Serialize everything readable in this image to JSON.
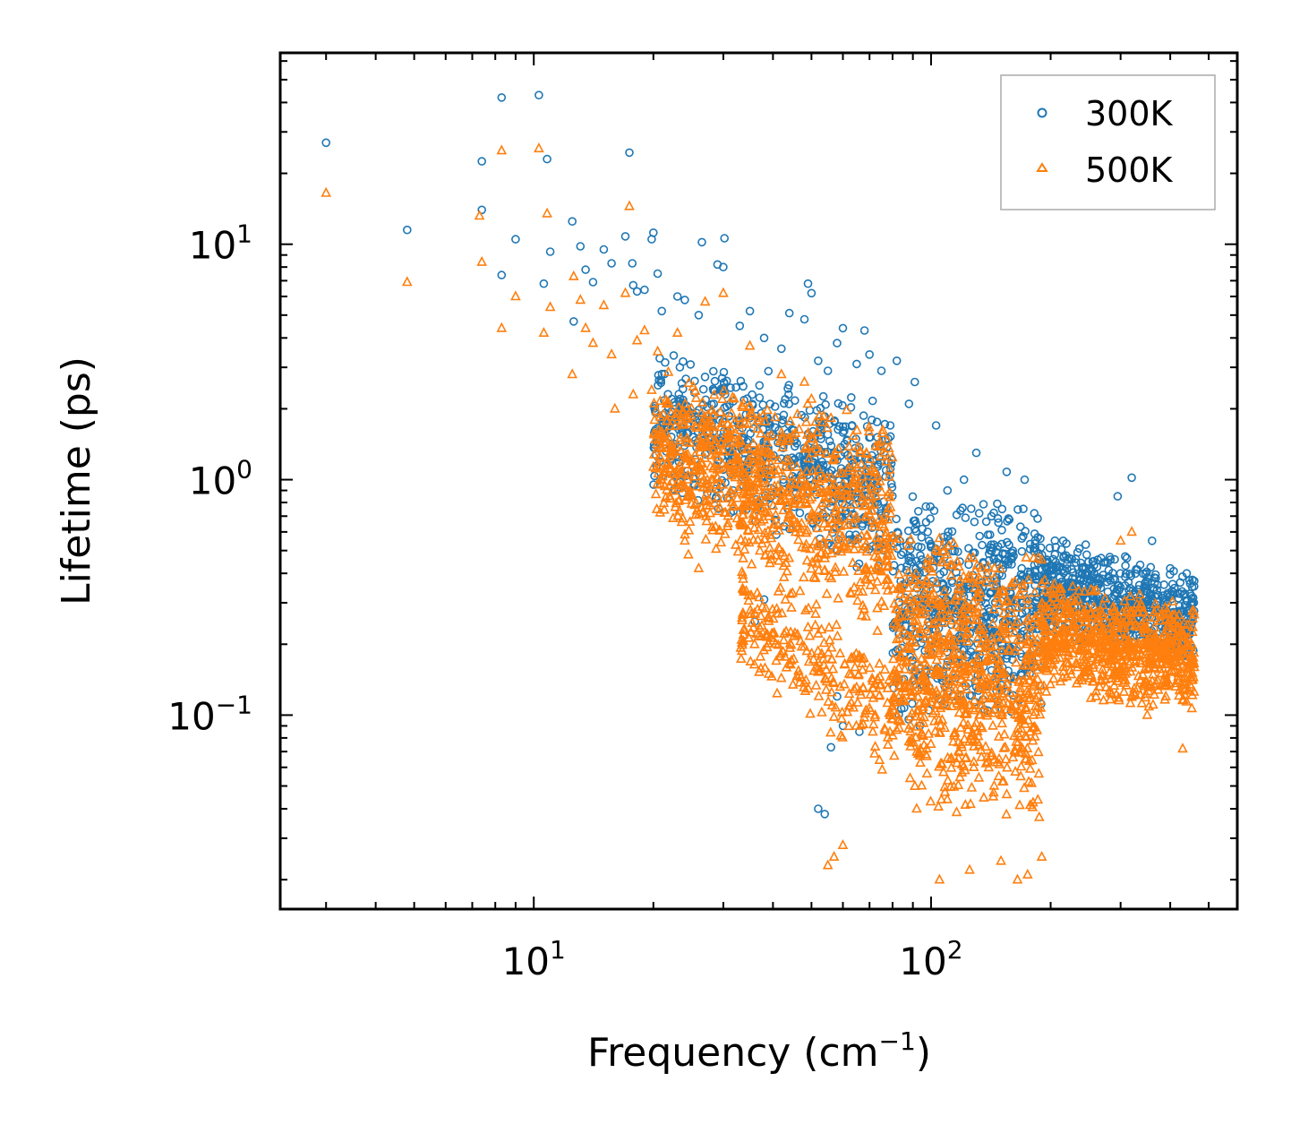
{
  "chart_data": {
    "type": "scatter",
    "title": "",
    "xlabel": "Frequency (cm",
    "xlabel_sup": "−1",
    "xlabel_suffix": ")",
    "ylabel": "Lifetime (ps)",
    "xscale": "log",
    "yscale": "log",
    "xlim": [
      2.3,
      590
    ],
    "ylim": [
      0.015,
      65
    ],
    "x_ticks": [
      {
        "base": "10",
        "exp": "1",
        "value": 10
      },
      {
        "base": "10",
        "exp": "2",
        "value": 100
      }
    ],
    "y_ticks": [
      {
        "base": "10",
        "exp": "1",
        "value": 10
      },
      {
        "base": "10",
        "exp": "0",
        "value": 1
      },
      {
        "base": "10",
        "exp": "−1",
        "value": 0.1
      }
    ],
    "legend_position": "top-right",
    "series": [
      {
        "name": "300K",
        "marker": "circle",
        "color": "#1f77b4",
        "points": [
          [
            3.0,
            27.0
          ],
          [
            4.8,
            11.5
          ],
          [
            7.4,
            22.5
          ],
          [
            7.4,
            14.0
          ],
          [
            8.3,
            42.0
          ],
          [
            8.3,
            7.4
          ],
          [
            9.0,
            10.5
          ],
          [
            10.3,
            43.0
          ],
          [
            10.6,
            6.8
          ],
          [
            10.8,
            23.0
          ],
          [
            11.0,
            9.3
          ],
          [
            12.5,
            12.5
          ],
          [
            12.6,
            4.7
          ],
          [
            13.1,
            9.8
          ],
          [
            13.5,
            7.8
          ],
          [
            14.1,
            6.9
          ],
          [
            15.0,
            9.5
          ],
          [
            15.7,
            8.3
          ],
          [
            17.0,
            10.8
          ],
          [
            17.4,
            24.5
          ],
          [
            17.7,
            8.3
          ],
          [
            17.8,
            6.7
          ],
          [
            18.2,
            6.3
          ],
          [
            19.0,
            6.4
          ],
          [
            19.8,
            10.5
          ],
          [
            20.0,
            11.2
          ],
          [
            20.5,
            7.5
          ],
          [
            21.0,
            5.2
          ],
          [
            23.0,
            6.0
          ],
          [
            24.0,
            5.8
          ],
          [
            26.0,
            5.0
          ],
          [
            26.5,
            10.2
          ],
          [
            29.0,
            8.2
          ],
          [
            30.0,
            8.0
          ],
          [
            30.2,
            10.6
          ],
          [
            33.0,
            4.5
          ],
          [
            35.0,
            5.2
          ],
          [
            38.0,
            4.0
          ],
          [
            42.0,
            3.6
          ],
          [
            44.0,
            5.1
          ],
          [
            48.0,
            4.8
          ],
          [
            49.0,
            6.8
          ],
          [
            50.0,
            6.2
          ],
          [
            52.0,
            3.2
          ],
          [
            55.0,
            2.9
          ],
          [
            58.0,
            3.8
          ],
          [
            60.0,
            4.4
          ],
          [
            65.0,
            3.1
          ],
          [
            68.0,
            4.3
          ],
          [
            70.0,
            3.4
          ],
          [
            75.0,
            2.9
          ],
          [
            82.0,
            3.2
          ],
          [
            88.0,
            2.1
          ],
          [
            91.0,
            2.6
          ],
          [
            103.0,
            1.7
          ],
          [
            110.0,
            0.9
          ],
          [
            121.0,
            1.0
          ],
          [
            130.0,
            1.3
          ],
          [
            142.0,
            0.7
          ],
          [
            155.0,
            1.08
          ],
          [
            172.0,
            1.0
          ],
          [
            215.0,
            0.55
          ],
          [
            240.0,
            0.42
          ],
          [
            265.0,
            0.36
          ],
          [
            295.0,
            0.85
          ],
          [
            320.0,
            1.02
          ],
          [
            360.0,
            0.55
          ],
          [
            400.0,
            0.42
          ],
          [
            440.0,
            0.4
          ],
          [
            455.0,
            0.3
          ],
          [
            52.0,
            0.04
          ],
          [
            54.0,
            0.038
          ],
          [
            56.0,
            0.073
          ],
          [
            60.0,
            0.09
          ],
          [
            66.0,
            0.085
          ],
          [
            58.0,
            0.12
          ],
          [
            36.0,
            0.25
          ],
          [
            38.0,
            0.31
          ]
        ]
      },
      {
        "name": "500K",
        "marker": "triangle",
        "color": "#ff7f0e",
        "points": [
          [
            3.0,
            16.5
          ],
          [
            4.8,
            6.9
          ],
          [
            7.3,
            13.2
          ],
          [
            7.4,
            8.4
          ],
          [
            8.3,
            4.4
          ],
          [
            8.3,
            25.0
          ],
          [
            9.0,
            6.0
          ],
          [
            10.3,
            25.5
          ],
          [
            10.6,
            4.2
          ],
          [
            10.8,
            13.5
          ],
          [
            11.0,
            5.4
          ],
          [
            12.5,
            2.8
          ],
          [
            12.6,
            7.3
          ],
          [
            13.1,
            5.8
          ],
          [
            13.5,
            4.4
          ],
          [
            14.1,
            3.8
          ],
          [
            15.0,
            5.5
          ],
          [
            15.7,
            3.4
          ],
          [
            16.0,
            2.0
          ],
          [
            17.0,
            6.2
          ],
          [
            17.4,
            14.5
          ],
          [
            17.8,
            2.3
          ],
          [
            18.2,
            3.9
          ],
          [
            19.0,
            4.3
          ],
          [
            19.8,
            2.4
          ],
          [
            20.5,
            3.5
          ],
          [
            21.0,
            1.6
          ],
          [
            22.0,
            1.3
          ],
          [
            23.0,
            4.2
          ],
          [
            24.0,
            0.55
          ],
          [
            24.5,
            0.48
          ],
          [
            26.0,
            0.42
          ],
          [
            27.0,
            5.7
          ],
          [
            30.0,
            6.2
          ],
          [
            35.0,
            3.7
          ],
          [
            42.0,
            2.8
          ],
          [
            48.0,
            2.6
          ],
          [
            50.0,
            2.2
          ],
          [
            55.0,
            0.023
          ],
          [
            57.0,
            0.025
          ],
          [
            60.0,
            0.028
          ],
          [
            92.0,
            0.04
          ],
          [
            105.0,
            0.02
          ],
          [
            125.0,
            0.022
          ],
          [
            150.0,
            0.024
          ],
          [
            165.0,
            0.02
          ],
          [
            175.0,
            0.021
          ],
          [
            190.0,
            0.025
          ],
          [
            215.0,
            0.16
          ],
          [
            240.0,
            0.14
          ],
          [
            260.0,
            0.12
          ],
          [
            300.0,
            0.55
          ],
          [
            320.0,
            0.6
          ],
          [
            350.0,
            0.1
          ],
          [
            390.0,
            0.12
          ],
          [
            430.0,
            0.072
          ],
          [
            450.0,
            0.16
          ]
        ]
      }
    ],
    "clusters": [
      {
        "series": "300K",
        "xmin": 20,
        "xmax": 80,
        "ylo_at_min": 0.9,
        "yhi_at_min": 4.0,
        "ylo_at_max": 0.35,
        "yhi_at_max": 2.2,
        "n": 700,
        "spread": 1.0
      },
      {
        "series": "300K",
        "xmin": 80,
        "xmax": 190,
        "ylo_at_min": 0.08,
        "yhi_at_min": 0.9,
        "ylo_at_max": 0.1,
        "yhi_at_max": 0.85,
        "n": 650,
        "spread": 1.0
      },
      {
        "series": "300K",
        "xmin": 190,
        "xmax": 460,
        "ylo_at_min": 0.2,
        "yhi_at_min": 0.6,
        "ylo_at_max": 0.16,
        "yhi_at_max": 0.42,
        "n": 650,
        "spread": 1.0
      },
      {
        "series": "500K",
        "xmin": 20,
        "xmax": 80,
        "ylo_at_min": 0.6,
        "yhi_at_min": 3.0,
        "ylo_at_max": 0.2,
        "yhi_at_max": 1.9,
        "n": 900,
        "spread": 1.0
      },
      {
        "series": "500K",
        "xmin": 33,
        "xmax": 80,
        "ylo_at_min": 0.15,
        "yhi_at_min": 0.45,
        "ylo_at_max": 0.05,
        "yhi_at_max": 0.2,
        "n": 250,
        "spread": 1.0
      },
      {
        "series": "500K",
        "xmin": 80,
        "xmax": 190,
        "ylo_at_min": 0.04,
        "yhi_at_min": 0.7,
        "ylo_at_max": 0.03,
        "yhi_at_max": 0.6,
        "n": 800,
        "spread": 1.0
      },
      {
        "series": "500K",
        "xmin": 190,
        "xmax": 460,
        "ylo_at_min": 0.12,
        "yhi_at_min": 0.4,
        "ylo_at_max": 0.1,
        "yhi_at_max": 0.3,
        "n": 750,
        "spread": 1.0
      }
    ]
  }
}
